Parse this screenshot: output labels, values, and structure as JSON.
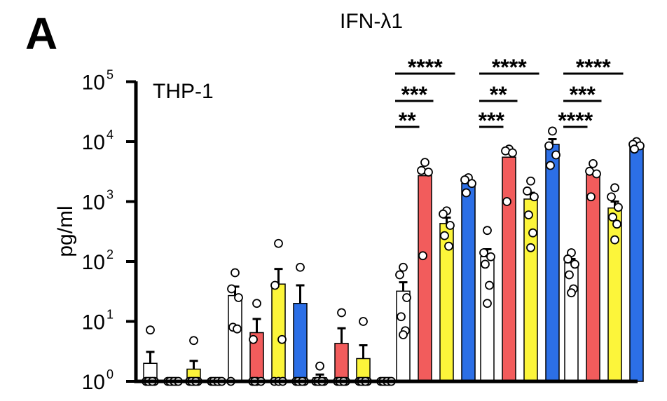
{
  "panel_label": "A",
  "chart_data": {
    "type": "bar",
    "title": "IFN-λ1",
    "ylabel": "pg/ml",
    "yscale": "log",
    "ylim": [
      1,
      100000
    ],
    "yticks": [
      {
        "base": "10",
        "exp": "0",
        "value": 1
      },
      {
        "base": "10",
        "exp": "1",
        "value": 10
      },
      {
        "base": "10",
        "exp": "2",
        "value": 100
      },
      {
        "base": "10",
        "exp": "3",
        "value": 1000
      },
      {
        "base": "10",
        "exp": "4",
        "value": 10000
      },
      {
        "base": "10",
        "exp": "5",
        "value": 100000
      }
    ],
    "annotation": "THP-1",
    "series_colors": [
      "#ffffff",
      "#f25c5c",
      "#fcf53a",
      "#2c6fe6"
    ],
    "groups": [
      {
        "bars": [
          {
            "value": 2.0,
            "err": 3.1,
            "points": [
              7.2,
              1,
              1,
              1,
              1,
              1
            ]
          },
          {
            "value": 1.0,
            "err": 1.0,
            "points": [
              1,
              1,
              1,
              1,
              1,
              1
            ]
          },
          {
            "value": 1.6,
            "err": 2.2,
            "points": [
              4.8,
              1,
              1,
              1,
              1,
              1
            ]
          },
          {
            "value": 1.0,
            "err": 1.0,
            "points": [
              1,
              1,
              1,
              1,
              1,
              1
            ]
          }
        ]
      },
      {
        "bars": [
          {
            "value": 27,
            "err": 38,
            "points": [
              65,
              35,
              25,
              8,
              7.5,
              1
            ]
          },
          {
            "value": 6.5,
            "err": 11,
            "points": [
              20,
              5,
              1,
              1,
              1,
              1
            ]
          },
          {
            "value": 42,
            "err": 75,
            "points": [
              200,
              40,
              5,
              1,
              1,
              1
            ]
          },
          {
            "value": 20,
            "err": 40,
            "points": [
              80,
              1,
              1,
              1,
              1,
              1
            ]
          }
        ]
      },
      {
        "bars": [
          {
            "value": 1.15,
            "err": 1.3,
            "points": [
              1.8,
              1,
              1,
              1,
              1,
              1
            ]
          },
          {
            "value": 4.3,
            "err": 7.7,
            "points": [
              14,
              1,
              1,
              1,
              1,
              1
            ]
          },
          {
            "value": 2.4,
            "err": 4.0,
            "points": [
              10,
              1,
              1,
              1,
              1,
              1
            ]
          },
          {
            "value": 1.0,
            "err": 1.0,
            "points": [
              1,
              1,
              1,
              1,
              1,
              1
            ]
          }
        ]
      },
      {
        "bars": [
          {
            "value": 32,
            "err": 45,
            "points": [
              80,
              60,
              25,
              12,
              7,
              6
            ]
          },
          {
            "value": 2700,
            "err": 2700,
            "points": [
              4500,
              3300,
              3100,
              125
            ]
          },
          {
            "value": 430,
            "err": 540,
            "points": [
              700,
              620,
              400,
              270,
              180
            ]
          },
          {
            "value": 2000,
            "err": 2000,
            "points": [
              2500,
              2300,
              2000,
              1400
            ]
          }
        ]
      },
      {
        "bars": [
          {
            "value": 120,
            "err": 160,
            "points": [
              330,
              140,
              120,
              90,
              40,
              20
            ]
          },
          {
            "value": 5500,
            "err": 5500,
            "points": [
              7500,
              7000,
              6500,
              1000
            ]
          },
          {
            "value": 1100,
            "err": 1400,
            "points": [
              2200,
              1500,
              1200,
              600,
              300,
              170
            ]
          },
          {
            "value": 9000,
            "err": 11000,
            "points": [
              15000,
              8500,
              6000,
              4000
            ]
          }
        ]
      },
      {
        "bars": [
          {
            "value": 95,
            "err": 110,
            "points": [
              140,
              110,
              90,
              60,
              35,
              30
            ]
          },
          {
            "value": 2800,
            "err": 2800,
            "points": [
              4300,
              3200,
              2900,
              1200
            ]
          },
          {
            "value": 780,
            "err": 1000,
            "points": [
              1700,
              1200,
              800,
              550,
              420,
              230
            ]
          },
          {
            "value": 8500,
            "err": 8500,
            "points": [
              10000,
              9000,
              8500,
              7500
            ]
          }
        ]
      }
    ],
    "significance": [
      {
        "text": "****",
        "group": 3,
        "row": 0
      },
      {
        "text": "***",
        "group": 3,
        "row": 1
      },
      {
        "text": "**",
        "group": 3,
        "row": 2
      },
      {
        "text": "****",
        "group": 4,
        "row": 0
      },
      {
        "text": "**",
        "group": 4,
        "row": 1
      },
      {
        "text": "***",
        "group": 4,
        "row": 2
      },
      {
        "text": "****",
        "group": 5,
        "row": 0
      },
      {
        "text": "***",
        "group": 5,
        "row": 1
      },
      {
        "text": "****",
        "group": 5,
        "row": 2
      }
    ]
  }
}
